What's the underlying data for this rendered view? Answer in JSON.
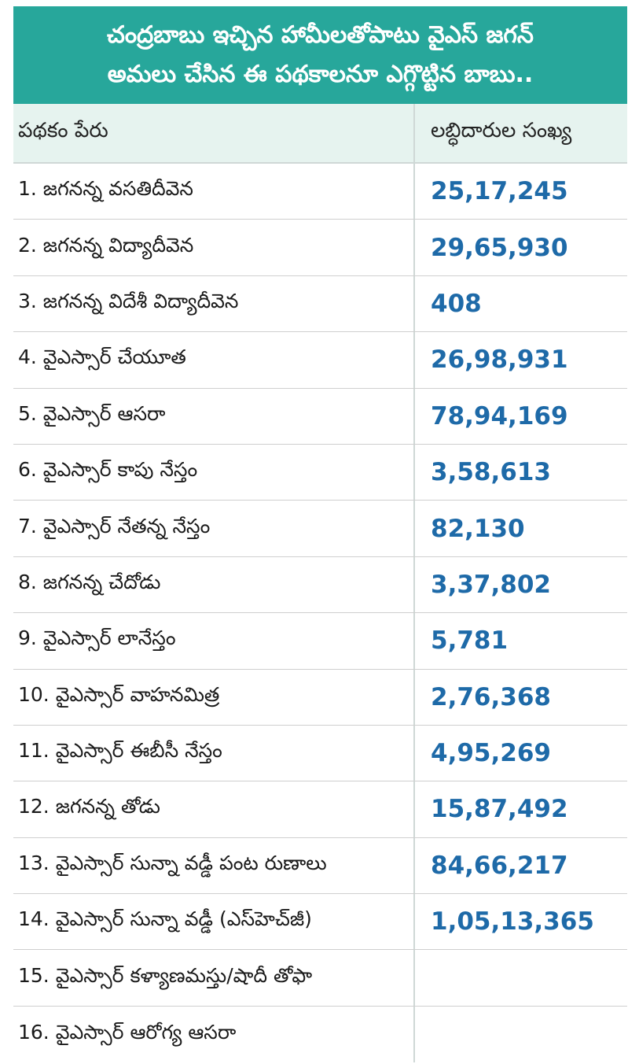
{
  "banner": {
    "line1": "చంద్రబాబు ఇచ్చిన హామీలతోపాటు వైఎస్ జగన్",
    "line2": "అమలు చేసిన ఈ పథకాలనూ ఎగ్గొట్టిన బాబు.."
  },
  "table": {
    "headers": {
      "scheme": "పథకం పేరు",
      "beneficiaries": "లబ్ధిదారుల సంఖ్య"
    },
    "rows": [
      {
        "scheme": "1. జగనన్న వసతిదీవెన",
        "count": "25,17,245"
      },
      {
        "scheme": "2. జగనన్న విద్యాదీవెన",
        "count": "29,65,930"
      },
      {
        "scheme": "3. జగనన్న విదేశీ విద్యాదీవెన",
        "count": "408"
      },
      {
        "scheme": "4. వైఎస్సార్ చేయూత",
        "count": "26,98,931"
      },
      {
        "scheme": "5. వైఎస్సార్ ఆసరా",
        "count": "78,94,169"
      },
      {
        "scheme": "6. వైఎస్సార్ కాపు నేస్తం",
        "count": "3,58,613"
      },
      {
        "scheme": "7. వైఎస్సార్ నేతన్న నేస్తం",
        "count": "82,130"
      },
      {
        "scheme": "8. జగనన్న చేదోడు",
        "count": "3,37,802"
      },
      {
        "scheme": "9. వైఎస్సార్ లానేస్తం",
        "count": "5,781"
      },
      {
        "scheme": "10. వైఎస్సార్ వాహనమిత్ర",
        "count": "2,76,368"
      },
      {
        "scheme": "11. వైఎస్సార్ ఈబీసీ నేస్తం",
        "count": "4,95,269"
      },
      {
        "scheme": "12. జగనన్న తోడు",
        "count": "15,87,492"
      },
      {
        "scheme": "13. వైఎస్సార్ సున్నా వడ్డీ పంట రుణాలు",
        "count": "84,66,217"
      },
      {
        "scheme": "14. వైఎస్సార్ సున్నా వడ్డీ (ఎస్‌హెచ్‌జీ)",
        "count": "1,05,13,365"
      },
      {
        "scheme": "15. వైఎస్సార్ కళ్యాణమస్తు/షాదీ తోఫా",
        "count": ""
      },
      {
        "scheme": "16. వైఎస్సార్ ఆరోగ్య ఆసరా",
        "count": ""
      }
    ]
  },
  "colors": {
    "banner_bg": "#27a79b",
    "header_bg": "#e6f3ef",
    "count_text": "#1e6aa8"
  }
}
